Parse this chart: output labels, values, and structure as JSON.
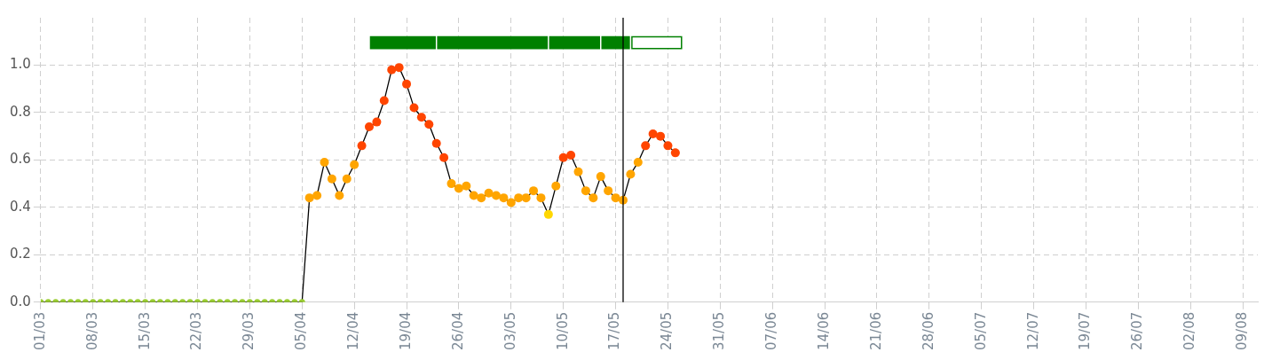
{
  "chart_data": {
    "type": "line",
    "x": [
      "--03-01",
      "--03-02",
      "--03-03",
      "--03-04",
      "--03-05",
      "--03-06",
      "--03-07",
      "--03-08",
      "--03-09",
      "--03-10",
      "--03-11",
      "--03-12",
      "--03-13",
      "--03-14",
      "--03-15",
      "--03-16",
      "--03-17",
      "--03-18",
      "--03-19",
      "--03-20",
      "--03-21",
      "--03-22",
      "--03-23",
      "--03-24",
      "--03-25",
      "--03-26",
      "--03-27",
      "--03-28",
      "--03-29",
      "--03-30",
      "--03-31",
      "--04-01",
      "--04-02",
      "--04-03",
      "--04-04",
      "--04-05",
      "--04-06",
      "--04-07",
      "--04-08",
      "--04-09",
      "--04-10",
      "--04-11",
      "--04-12",
      "--04-13",
      "--04-14",
      "--04-15",
      "--04-16",
      "--04-17",
      "--04-18",
      "--04-19",
      "--04-20",
      "--04-21",
      "--04-22",
      "--04-23",
      "--04-24",
      "--04-25",
      "--04-26",
      "--04-27",
      "--04-28",
      "--04-29",
      "--04-30",
      "--05-01",
      "--05-02",
      "--05-03",
      "--05-04",
      "--05-05",
      "--05-06",
      "--05-07",
      "--05-08",
      "--05-09",
      "--05-10",
      "--05-11",
      "--05-12",
      "--05-13",
      "--05-14",
      "--05-15",
      "--05-16",
      "--05-17",
      "--05-18",
      "--05-19",
      "--05-20",
      "--05-21",
      "--05-22",
      "--05-23",
      "--05-24",
      "--05-25"
    ],
    "series": [
      {
        "color": "#000000",
        "values": [
          0,
          0,
          0,
          0,
          0,
          0,
          0,
          0,
          0,
          0,
          0,
          0,
          0,
          0,
          0,
          0,
          0,
          0,
          0,
          0,
          0,
          0,
          0,
          0,
          0,
          0,
          0,
          0,
          0,
          0,
          0,
          0,
          0,
          0,
          0,
          0,
          0.44,
          0.45,
          0.59,
          0.52,
          0.45,
          0.52,
          0.58,
          0.66,
          0.74,
          0.76,
          0.85,
          0.98,
          0.99,
          0.92,
          0.82,
          0.78,
          0.75,
          0.67,
          0.61,
          0.5,
          0.48,
          0.49,
          0.45,
          0.44,
          0.46,
          0.45,
          0.44,
          0.42,
          0.44,
          0.44,
          0.47,
          0.44,
          0.37,
          0.49,
          0.61,
          0.62,
          0.55,
          0.47,
          0.44,
          0.53,
          0.47,
          0.44,
          0.43,
          0.54,
          0.59,
          0.66,
          0.71,
          0.7,
          0.66,
          0.63
        ],
        "colors": [
          "#9acd32",
          "#9acd32",
          "#9acd32",
          "#9acd32",
          "#9acd32",
          "#9acd32",
          "#9acd32",
          "#9acd32",
          "#9acd32",
          "#9acd32",
          "#9acd32",
          "#9acd32",
          "#9acd32",
          "#9acd32",
          "#9acd32",
          "#9acd32",
          "#9acd32",
          "#9acd32",
          "#9acd32",
          "#9acd32",
          "#9acd32",
          "#9acd32",
          "#9acd32",
          "#9acd32",
          "#9acd32",
          "#9acd32",
          "#9acd32",
          "#9acd32",
          "#9acd32",
          "#9acd32",
          "#9acd32",
          "#9acd32",
          "#9acd32",
          "#9acd32",
          "#9acd32",
          "#9acd32",
          "#ffa500",
          "#ffa500",
          "#ffa500",
          "#ffa500",
          "#ffa500",
          "#ffa500",
          "#ffa500",
          "#ff4500",
          "#ff4500",
          "#ff4500",
          "#ff4500",
          "#ff4500",
          "#ff4500",
          "#ff4500",
          "#ff4500",
          "#ff4500",
          "#ff4500",
          "#ff4500",
          "#ff4500",
          "#ffa500",
          "#ffa500",
          "#ffa500",
          "#ffa500",
          "#ffa500",
          "#ffa500",
          "#ffa500",
          "#ffa500",
          "#ffa500",
          "#ffa500",
          "#ffa500",
          "#ffa500",
          "#ffa500",
          "#ffd700",
          "#ffa500",
          "#ff4500",
          "#ff4500",
          "#ffa500",
          "#ffa500",
          "#ffa500",
          "#ffa500",
          "#ffa500",
          "#ffa500",
          "#ffa500",
          "#ffa500",
          "#ffa500",
          "#ff4500",
          "#ff4500",
          "#ff4500",
          "#ff4500",
          "#ff4500"
        ]
      }
    ],
    "xlim": [
      "--03-01",
      "--08-11"
    ],
    "xticks": [
      {
        "value": "--03-01",
        "label": "01/03"
      },
      {
        "value": "--03-08",
        "label": "08/03"
      },
      {
        "value": "--03-15",
        "label": "15/03"
      },
      {
        "value": "--03-22",
        "label": "22/03"
      },
      {
        "value": "--03-29",
        "label": "29/03"
      },
      {
        "value": "--04-05",
        "label": "05/04"
      },
      {
        "value": "--04-12",
        "label": "12/04"
      },
      {
        "value": "--04-19",
        "label": "19/04"
      },
      {
        "value": "--04-26",
        "label": "26/04"
      },
      {
        "value": "--05-03",
        "label": "03/05"
      },
      {
        "value": "--05-10",
        "label": "10/05"
      },
      {
        "value": "--05-17",
        "label": "17/05"
      },
      {
        "value": "--05-24",
        "label": "24/05"
      },
      {
        "value": "--05-31",
        "label": "31/05"
      },
      {
        "value": "--06-07",
        "label": "07/06"
      },
      {
        "value": "--06-14",
        "label": "14/06"
      },
      {
        "value": "--06-21",
        "label": "21/06"
      },
      {
        "value": "--06-28",
        "label": "28/06"
      },
      {
        "value": "--07-05",
        "label": "05/07"
      },
      {
        "value": "--07-12",
        "label": "12/07"
      },
      {
        "value": "--07-19",
        "label": "19/07"
      },
      {
        "value": "--07-26",
        "label": "26/07"
      },
      {
        "value": "--08-02",
        "label": "02/08"
      },
      {
        "value": "--08-09",
        "label": "09/08"
      }
    ],
    "ylim": [
      0,
      1.2
    ],
    "yticks": [
      {
        "value": 0,
        "label": "0.0"
      },
      {
        "value": 0.2,
        "label": "0.2"
      },
      {
        "value": 0.4,
        "label": "0.4"
      },
      {
        "value": 0.6,
        "label": "0.6"
      },
      {
        "value": 0.8,
        "label": "0.8"
      },
      {
        "value": 1,
        "label": "1.0"
      }
    ],
    "ref_lines": [
      {
        "axis": "x",
        "value": "--05-18",
        "color": "#000000"
      }
    ],
    "bands": [
      {
        "axis": "x",
        "from": "--04-14",
        "to": "--04-23",
        "color": "#008000"
      },
      {
        "axis": "x",
        "from": "--04-23",
        "to": "--05-08",
        "color": "#008000"
      },
      {
        "axis": "x",
        "from": "--05-08",
        "to": "--05-15",
        "color": "#008000"
      },
      {
        "axis": "x",
        "from": "--05-15",
        "to": "--05-19",
        "color": "#008000"
      },
      {
        "axis": "x",
        "from": "--05-19",
        "to": "--05-26",
        "color": "#ffffff"
      }
    ],
    "grid": true,
    "legend": false,
    "marker": "circle",
    "line_style": "solid"
  }
}
